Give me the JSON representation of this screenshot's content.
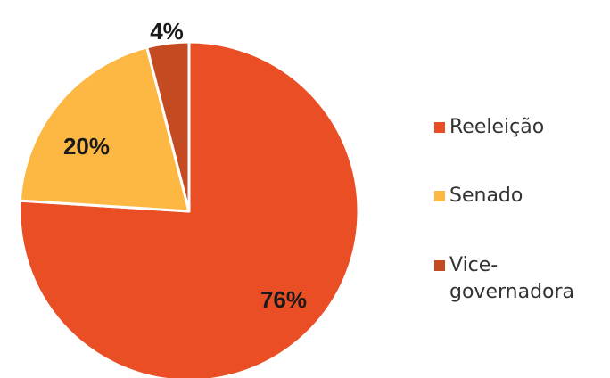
{
  "chart_data": {
    "type": "pie",
    "categories": [
      "Reeleição",
      "Senado",
      "Vice-governadora"
    ],
    "values": [
      76,
      20,
      4
    ],
    "value_labels": [
      "76%",
      "20%",
      "4%"
    ],
    "colors": [
      "#E94E24",
      "#FDB843",
      "#C44A22"
    ],
    "start_angle_deg": 0,
    "direction": "clockwise",
    "legend": {
      "placement": "right",
      "entries": [
        {
          "lines": [
            "Reeleição"
          ]
        },
        {
          "lines": [
            "Senado"
          ]
        },
        {
          "lines": [
            "Vice-",
            "governadora"
          ]
        }
      ]
    }
  }
}
